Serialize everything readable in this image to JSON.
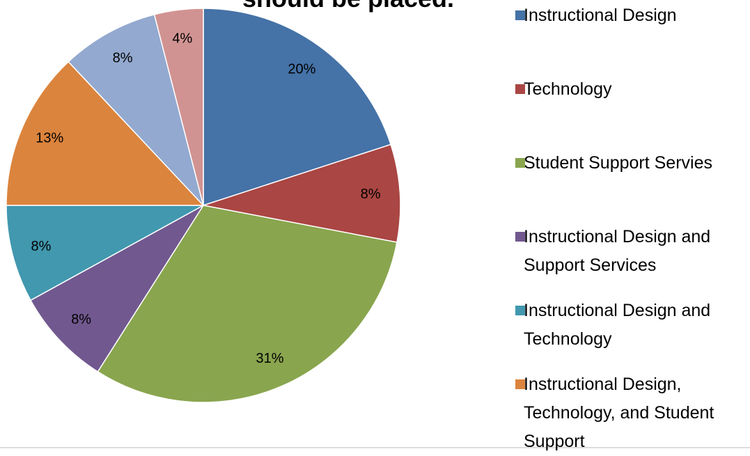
{
  "chart_data": {
    "type": "pie",
    "title": "should be placed.",
    "categories": [
      "Instructional Design",
      "Technology",
      "Student Support Servies",
      "Instructional Design and Support Services",
      "Instructional Design and Technology",
      "Instructional Design, Technology, and Student Support",
      null,
      null
    ],
    "values": [
      20,
      8,
      31,
      8,
      8,
      13,
      8,
      4
    ],
    "value_labels": [
      "20%",
      "8%",
      "31%",
      "8%",
      "8%",
      "13%",
      "8%",
      "4%"
    ],
    "colors": [
      "#4572a7",
      "#aa4643",
      "#89a54e",
      "#71588f",
      "#4198af",
      "#db843d",
      "#93a9cf",
      "#d19392"
    ]
  }
}
